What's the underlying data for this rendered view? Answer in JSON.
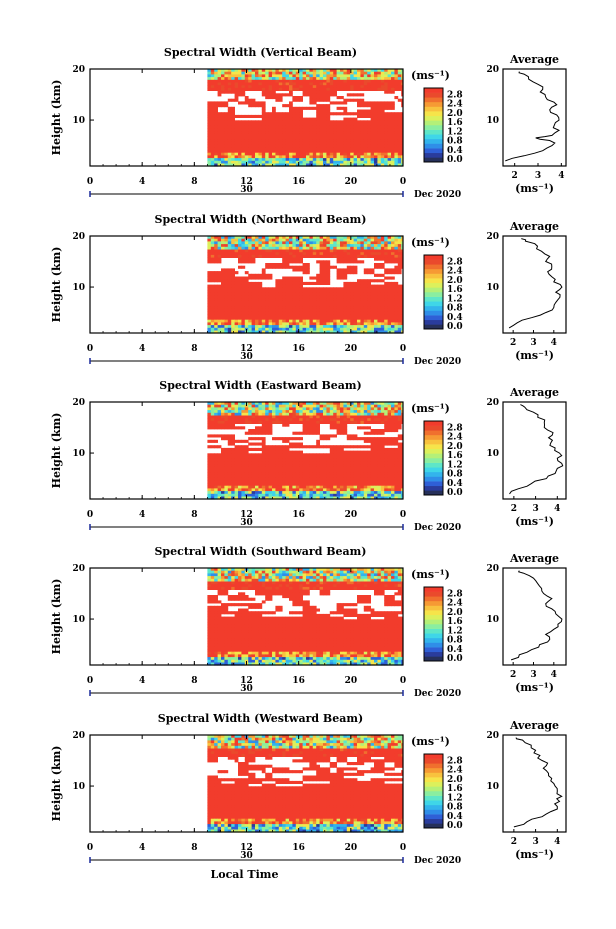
{
  "figure": {
    "time_label": "Local Time",
    "day_label": "30",
    "month_label": "Dec 2020",
    "height_label": "Height (km)",
    "x_ticks": [
      "0",
      "4",
      "8",
      "12",
      "16",
      "20",
      "0"
    ],
    "y_ticks": [
      "20",
      "10"
    ],
    "units_label": "(ms⁻¹)",
    "avg_title": "Average",
    "avg_units": "(ms⁻¹)",
    "avg_x_ticks": [
      "2",
      "3",
      "4"
    ],
    "colorbar_ticks": [
      "2.8",
      "2.4",
      "2.0",
      "1.6",
      "1.2",
      "0.8",
      "0.4",
      "0.0"
    ],
    "colorbar_colors": [
      "#26305a",
      "#2a3c9c",
      "#2f5fd6",
      "#2f8ee8",
      "#33b4ec",
      "#3fd6e8",
      "#5ee6c8",
      "#8aeea0",
      "#b4f078",
      "#dcf05c",
      "#f6e44a",
      "#f8c23e",
      "#f69a34",
      "#f0702e",
      "#ea4a2c",
      "#f23c2c"
    ]
  },
  "panels": [
    {
      "title": "Spectral Width (Vertical Beam)"
    },
    {
      "title": "Spectral Width (Northward Beam)"
    },
    {
      "title": "Spectral Width (Eastward Beam)"
    },
    {
      "title": "Spectral Width (Southward Beam)"
    },
    {
      "title": "Spectral Width (Westward Beam)"
    }
  ],
  "chart_data": [
    {
      "type": "heatmap",
      "title": "Spectral Width (Vertical Beam)",
      "xlabel": "",
      "ylabel": "Height (km)",
      "xlim": [
        0,
        24
      ],
      "ylim": [
        1,
        20
      ],
      "clim": [
        0,
        2.8
      ],
      "data_start_hour": 9,
      "average_profile": {
        "type": "line",
        "title": "Average",
        "xlim": [
          1.5,
          4.2
        ],
        "ylim": [
          1,
          20
        ],
        "height_km": [
          2,
          3,
          4,
          5,
          6,
          6.5,
          7,
          8,
          9,
          10,
          11,
          12,
          13,
          14,
          15,
          16,
          17,
          18,
          19,
          19.5
        ],
        "width": [
          1.6,
          2.4,
          3.2,
          3.6,
          3.5,
          2.9,
          3.6,
          3.9,
          3.7,
          3.9,
          3.8,
          3.5,
          3.8,
          3.4,
          3.3,
          3.2,
          3.0,
          2.6,
          2.4,
          2.2
        ]
      }
    },
    {
      "type": "heatmap",
      "title": "Spectral Width (Northward Beam)",
      "xlabel": "",
      "ylabel": "Height (km)",
      "xlim": [
        0,
        24
      ],
      "ylim": [
        1,
        20
      ],
      "clim": [
        0,
        2.8
      ],
      "data_start_hour": 9,
      "average_profile": {
        "type": "line",
        "title": "Average",
        "xlim": [
          1.5,
          4.6
        ],
        "ylim": [
          1,
          20
        ],
        "height_km": [
          2,
          3,
          4,
          5,
          6,
          7,
          8,
          9,
          10,
          11,
          12,
          13,
          14,
          15,
          16,
          17,
          18,
          19,
          19.5
        ],
        "width": [
          1.8,
          2.2,
          2.9,
          3.6,
          4.0,
          4.1,
          4.3,
          4.1,
          4.4,
          4.0,
          3.9,
          3.7,
          3.9,
          3.6,
          3.8,
          3.4,
          3.2,
          2.6,
          2.4
        ]
      }
    },
    {
      "type": "heatmap",
      "title": "Spectral Width (Eastward Beam)",
      "xlabel": "",
      "ylabel": "Height (km)",
      "xlim": [
        0,
        24
      ],
      "ylim": [
        1,
        20
      ],
      "clim": [
        0,
        2.8
      ],
      "data_start_hour": 9,
      "average_profile": {
        "type": "line",
        "title": "Average",
        "xlim": [
          1.5,
          4.4
        ],
        "ylim": [
          1,
          20
        ],
        "height_km": [
          2,
          3,
          4,
          5,
          6,
          7,
          8,
          9,
          10,
          11,
          12,
          13,
          14,
          15,
          16,
          17,
          18,
          19,
          19.5
        ],
        "width": [
          1.8,
          2.2,
          2.8,
          3.5,
          3.9,
          4.0,
          4.2,
          4.0,
          4.1,
          3.9,
          3.7,
          3.6,
          3.8,
          3.4,
          3.4,
          3.1,
          2.9,
          2.5,
          2.3
        ]
      }
    },
    {
      "type": "heatmap",
      "title": "Spectral Width (Southward Beam)",
      "xlabel": "",
      "ylabel": "Height (km)",
      "xlim": [
        0,
        24
      ],
      "ylim": [
        1,
        20
      ],
      "clim": [
        0,
        2.8
      ],
      "data_start_hour": 9,
      "average_profile": {
        "type": "line",
        "title": "Average",
        "xlim": [
          1.5,
          4.6
        ],
        "ylim": [
          1,
          20
        ],
        "height_km": [
          2,
          3,
          4,
          5,
          6,
          7,
          8,
          9,
          10,
          11,
          12,
          13,
          14,
          15,
          16,
          17,
          18,
          19,
          19.5
        ],
        "width": [
          1.9,
          2.3,
          2.9,
          3.3,
          3.8,
          3.6,
          4.0,
          4.2,
          4.4,
          4.1,
          3.9,
          3.6,
          3.9,
          3.5,
          3.4,
          3.2,
          3.0,
          2.5,
          2.3
        ]
      }
    },
    {
      "type": "heatmap",
      "title": "Spectral Width (Westward Beam)",
      "xlabel": "",
      "ylabel": "Height (km)",
      "xlim": [
        0,
        24
      ],
      "ylim": [
        1,
        20
      ],
      "clim": [
        0,
        2.8
      ],
      "data_start_hour": 9,
      "average_profile": {
        "type": "line",
        "title": "Average",
        "xlim": [
          1.5,
          4.4
        ],
        "ylim": [
          1,
          20
        ],
        "height_km": [
          2,
          3,
          4,
          5,
          6,
          7,
          8,
          9,
          10,
          11,
          12,
          13,
          14,
          15,
          16,
          17,
          18,
          19,
          19.5
        ],
        "width": [
          2.0,
          2.6,
          3.3,
          3.7,
          4.0,
          4.1,
          4.2,
          4.0,
          3.9,
          3.7,
          3.6,
          3.5,
          3.5,
          3.3,
          3.2,
          3.0,
          2.8,
          2.4,
          2.1
        ]
      }
    }
  ]
}
